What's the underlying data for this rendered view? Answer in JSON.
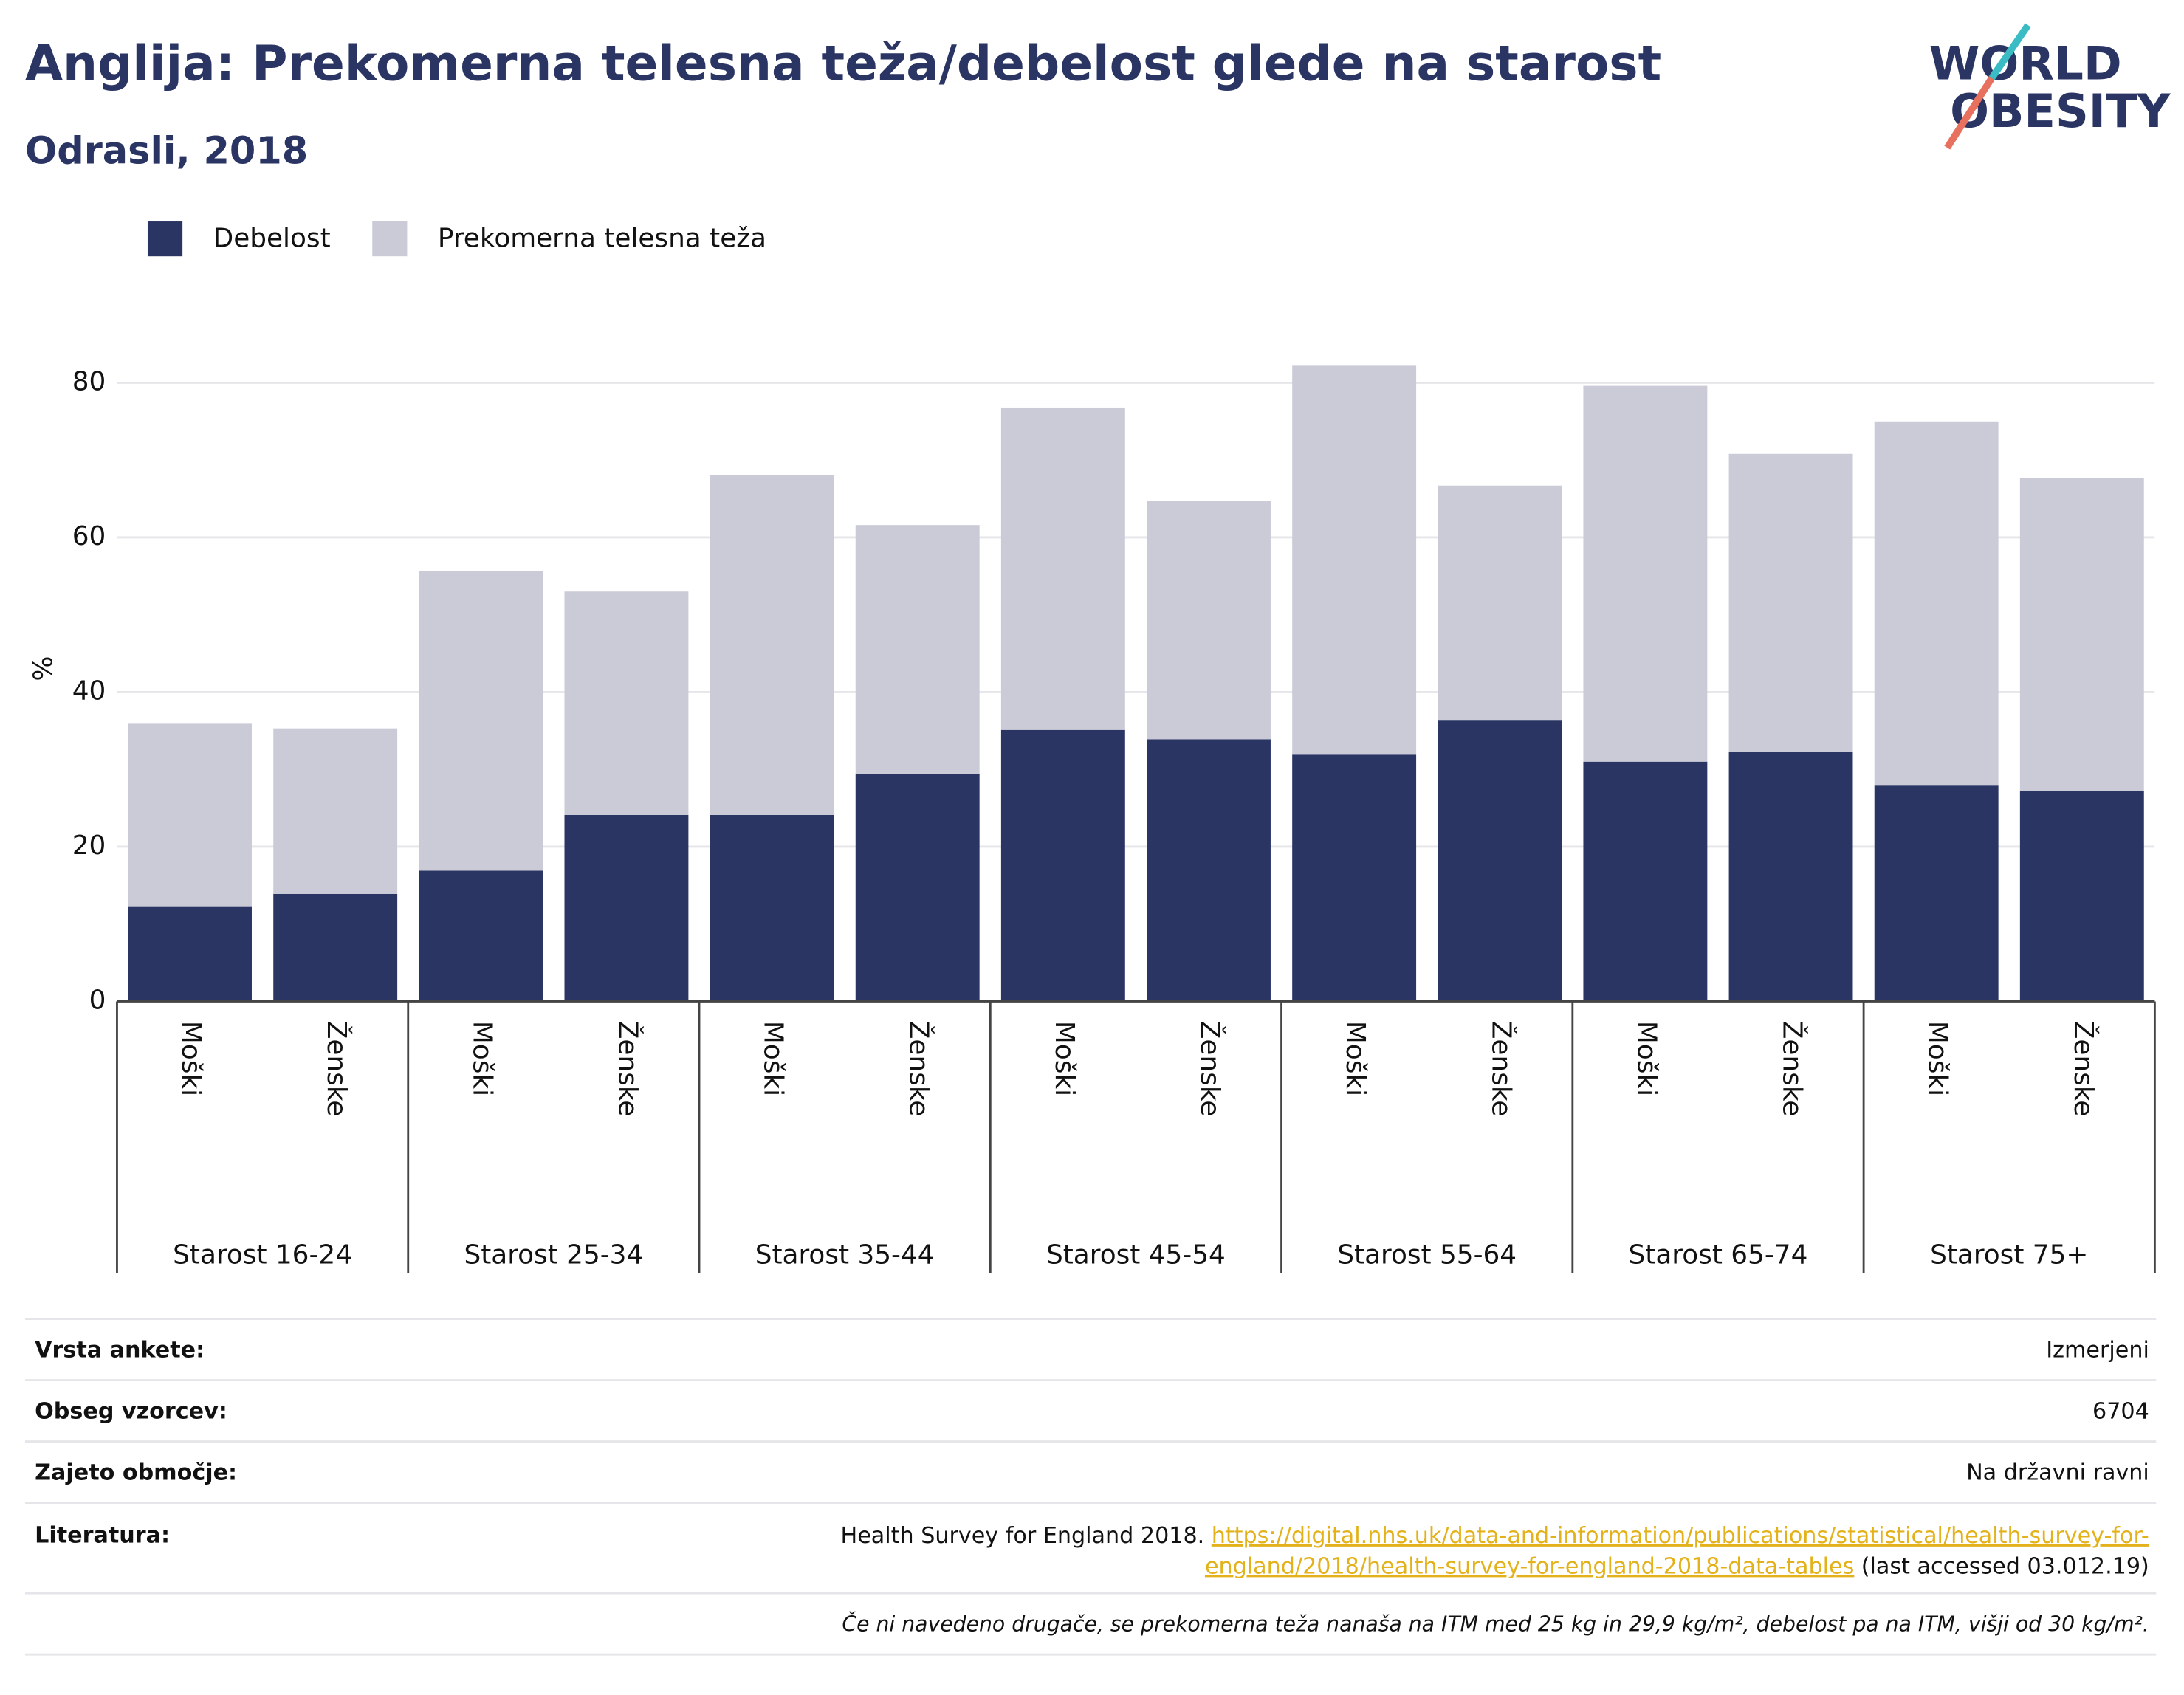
{
  "chart_data": {
    "type": "stacked_bar",
    "title": "Anglija: Prekomerna telesna teža/debelost glede na starost",
    "subtitle": "Odrasli, 2018",
    "logo": [
      "WORLD",
      "OBESITY"
    ],
    "y_label": "%",
    "groups": [
      "Starost 16-24",
      "Starost 25-34",
      "Starost 35-44",
      "Starost 45-54",
      "Starost 55-64",
      "Starost 65-74",
      "Starost 75+"
    ],
    "categories": [
      "Moški",
      "Ženske",
      "Moški",
      "Ženske",
      "Moški",
      "Ženske",
      "Moški",
      "Ženske",
      "Moški",
      "Ženske",
      "Moški",
      "Ženske",
      "Moški",
      "Ženske"
    ],
    "series": [
      {
        "name": "Debelost",
        "color": "#2a3564",
        "values": [
          12.3,
          13.9,
          16.9,
          24.1,
          24.1,
          29.4,
          35.1,
          33.9,
          31.9,
          36.4,
          31.0,
          32.3,
          27.9,
          27.2
        ]
      },
      {
        "name": "Prekomerna telesna teža",
        "color": "#cacbd7",
        "values": [
          23.6,
          21.4,
          38.8,
          28.9,
          44.0,
          32.2,
          41.7,
          30.8,
          50.3,
          30.3,
          48.6,
          38.5,
          47.1,
          40.5
        ]
      }
    ],
    "ylim": [
      0,
      85
    ],
    "yticks": [
      0,
      20,
      40,
      60,
      80
    ],
    "grid": true,
    "legend": "top-left"
  },
  "table": {
    "rows": [
      {
        "label": "Vrsta ankete:",
        "value": "Izmerjeni"
      },
      {
        "label": "Obseg vzorcev:",
        "value": "6704"
      },
      {
        "label": "Zajeto območje:",
        "value": "Na državni ravni"
      }
    ],
    "reference": {
      "label": "Literatura:",
      "text": "Health Survey for England 2018.",
      "link": [
        "https://digital.nhs.uk/data-and-information/publications/statistical/health-survey-for-",
        "england/2018/health-survey-for-england-2018-data-tables"
      ],
      "suffix": "(last accessed 03.012.19)"
    },
    "note": "Če ni navedeno drugače, se prekomerna teža nanaša na ITM med 25 kg in 29,9 kg/m², debelost pa na ITM, višji od 30 kg/m²."
  }
}
